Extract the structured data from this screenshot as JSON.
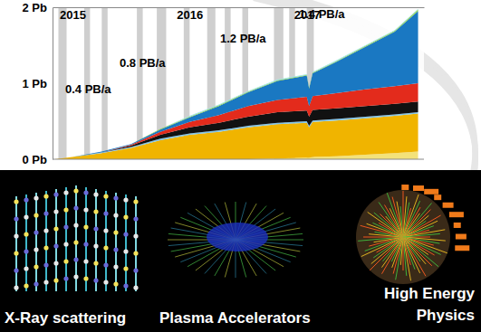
{
  "chart_data": {
    "type": "area",
    "stacked": true,
    "grid": false,
    "x": [
      2014.85,
      2015.0,
      2015.25,
      2015.5,
      2015.75,
      2016.0,
      2016.25,
      2016.5,
      2016.75,
      2017.0,
      2017.02,
      2017.05,
      2017.25,
      2017.5,
      2017.75,
      2017.95
    ],
    "xlim": [
      2014.83,
      2018.0
    ],
    "xticks": [
      2015,
      2016,
      2017
    ],
    "ylim": [
      0,
      2
    ],
    "yticks": [
      {
        "value": 0,
        "label": "0 Pb"
      },
      {
        "value": 1,
        "label": "1 Pb"
      },
      {
        "value": 2,
        "label": "2 Pb"
      }
    ],
    "annotations": [
      "0.4 PB/a",
      "0.8 PB/a",
      "1.2 PB/a",
      "1.4 PB/a"
    ],
    "shaded_periods": [
      [
        2014.88,
        2014.95
      ],
      [
        2015.1,
        2015.15
      ],
      [
        2015.25,
        2015.3
      ],
      [
        2015.55,
        2015.6
      ],
      [
        2015.72,
        2015.8
      ],
      [
        2015.95,
        2016.0
      ],
      [
        2016.15,
        2016.22
      ],
      [
        2016.3,
        2016.35
      ],
      [
        2016.45,
        2016.5
      ],
      [
        2016.72,
        2016.8
      ],
      [
        2016.85,
        2016.9
      ],
      [
        2017.0,
        2017.06
      ]
    ],
    "series": [
      {
        "color": "#f3e27a",
        "values": [
          0,
          0,
          0,
          0,
          0,
          0,
          0,
          0,
          0.01,
          0.02,
          0.02,
          0.03,
          0.04,
          0.06,
          0.08,
          0.1
        ]
      },
      {
        "color": "#f0b400",
        "values": [
          0,
          0.03,
          0.08,
          0.15,
          0.25,
          0.32,
          0.36,
          0.42,
          0.45,
          0.46,
          0.4,
          0.46,
          0.47,
          0.48,
          0.49,
          0.5
        ]
      },
      {
        "color": "#7fc4e8",
        "values": [
          0,
          0,
          0.01,
          0.01,
          0.02,
          0.02,
          0.02,
          0.02,
          0.02,
          0.02,
          0.02,
          0.02,
          0.02,
          0.02,
          0.02,
          0.02
        ]
      },
      {
        "color": "#111111",
        "values": [
          0,
          0,
          0,
          0.02,
          0.05,
          0.08,
          0.1,
          0.12,
          0.14,
          0.14,
          0.12,
          0.14,
          0.14,
          0.14,
          0.14,
          0.14
        ]
      },
      {
        "color": "#e32b1c",
        "values": [
          0,
          0,
          0,
          0.01,
          0.04,
          0.07,
          0.1,
          0.14,
          0.16,
          0.18,
          0.14,
          0.18,
          0.2,
          0.22,
          0.23,
          0.24
        ]
      },
      {
        "color": "#1a78c2",
        "values": [
          0,
          0,
          0.01,
          0.01,
          0.03,
          0.06,
          0.12,
          0.18,
          0.25,
          0.28,
          0.23,
          0.3,
          0.41,
          0.56,
          0.72,
          0.95
        ]
      },
      {
        "color": "#8fd14f",
        "values": [
          0,
          0,
          0,
          0,
          0.01,
          0.01,
          0.01,
          0.01,
          0.01,
          0.01,
          0.01,
          0.01,
          0.01,
          0.01,
          0.01,
          0.02
        ]
      },
      {
        "color": "#9ee6e6",
        "values": [
          0,
          0,
          0,
          0,
          0,
          0.01,
          0.01,
          0.01,
          0.01,
          0.01,
          0.01,
          0.01,
          0.01,
          0.01,
          0.01,
          0.01
        ]
      }
    ]
  },
  "panels": {
    "captions": [
      "X-Ray scattering",
      "Plasma Accelerators",
      "High Energy Physics"
    ]
  }
}
